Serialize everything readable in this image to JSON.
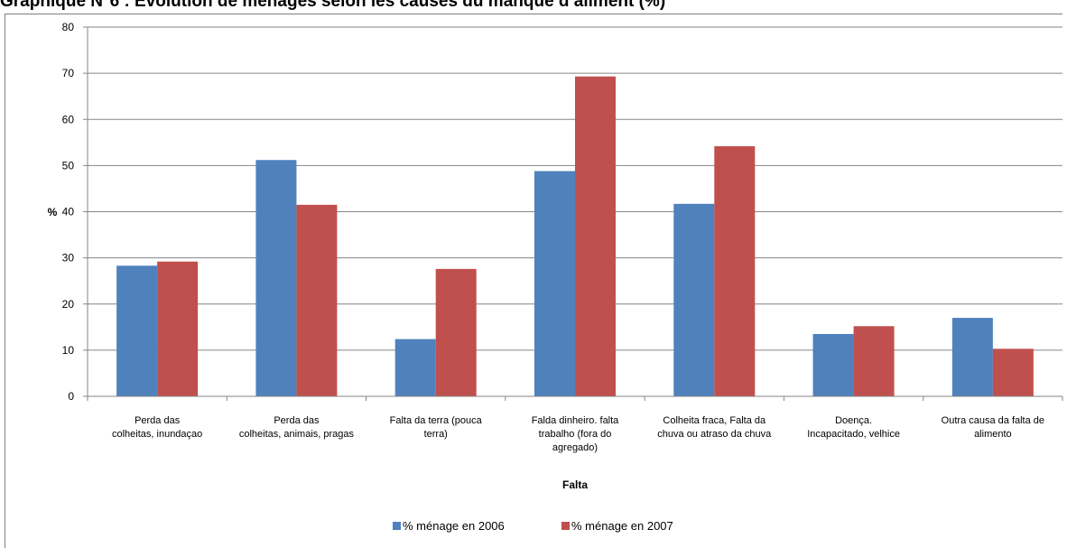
{
  "chart_data": {
    "type": "bar",
    "title": "Graphique N°6 : Evolution de ménages selon les causes du manque d’aliment (%)",
    "xlabel": "Falta",
    "ylabel": "%",
    "ylim": [
      0,
      80
    ],
    "yticks": [
      "0",
      "10",
      "20",
      "30",
      "40",
      "50",
      "60",
      "70",
      "80"
    ],
    "grid": true,
    "legend_position": "bottom",
    "categories": [
      [
        "Perda das",
        "colheitas, inundaçao"
      ],
      [
        "Perda das",
        "colheitas, animais, pragas"
      ],
      [
        "Falta da terra (pouca",
        "terra)"
      ],
      [
        "Falda dinheiro. falta",
        "trabalho (fora do",
        "agregado)"
      ],
      [
        "Colheita fraca, Falta da",
        "chuva ou atraso da chuva"
      ],
      [
        "Doença.",
        "Incapacitado, velhice"
      ],
      [
        "Outra causa da falta de",
        "alimento"
      ]
    ],
    "series": [
      {
        "name": "% ménage en 2006",
        "color": "#4f81bd",
        "values": [
          28.3,
          51.2,
          12.4,
          48.8,
          41.7,
          13.5,
          17.0
        ]
      },
      {
        "name": "% ménage en 2007",
        "color": "#c0504d",
        "values": [
          29.2,
          41.5,
          27.6,
          69.3,
          54.2,
          15.2,
          10.3
        ]
      }
    ]
  }
}
